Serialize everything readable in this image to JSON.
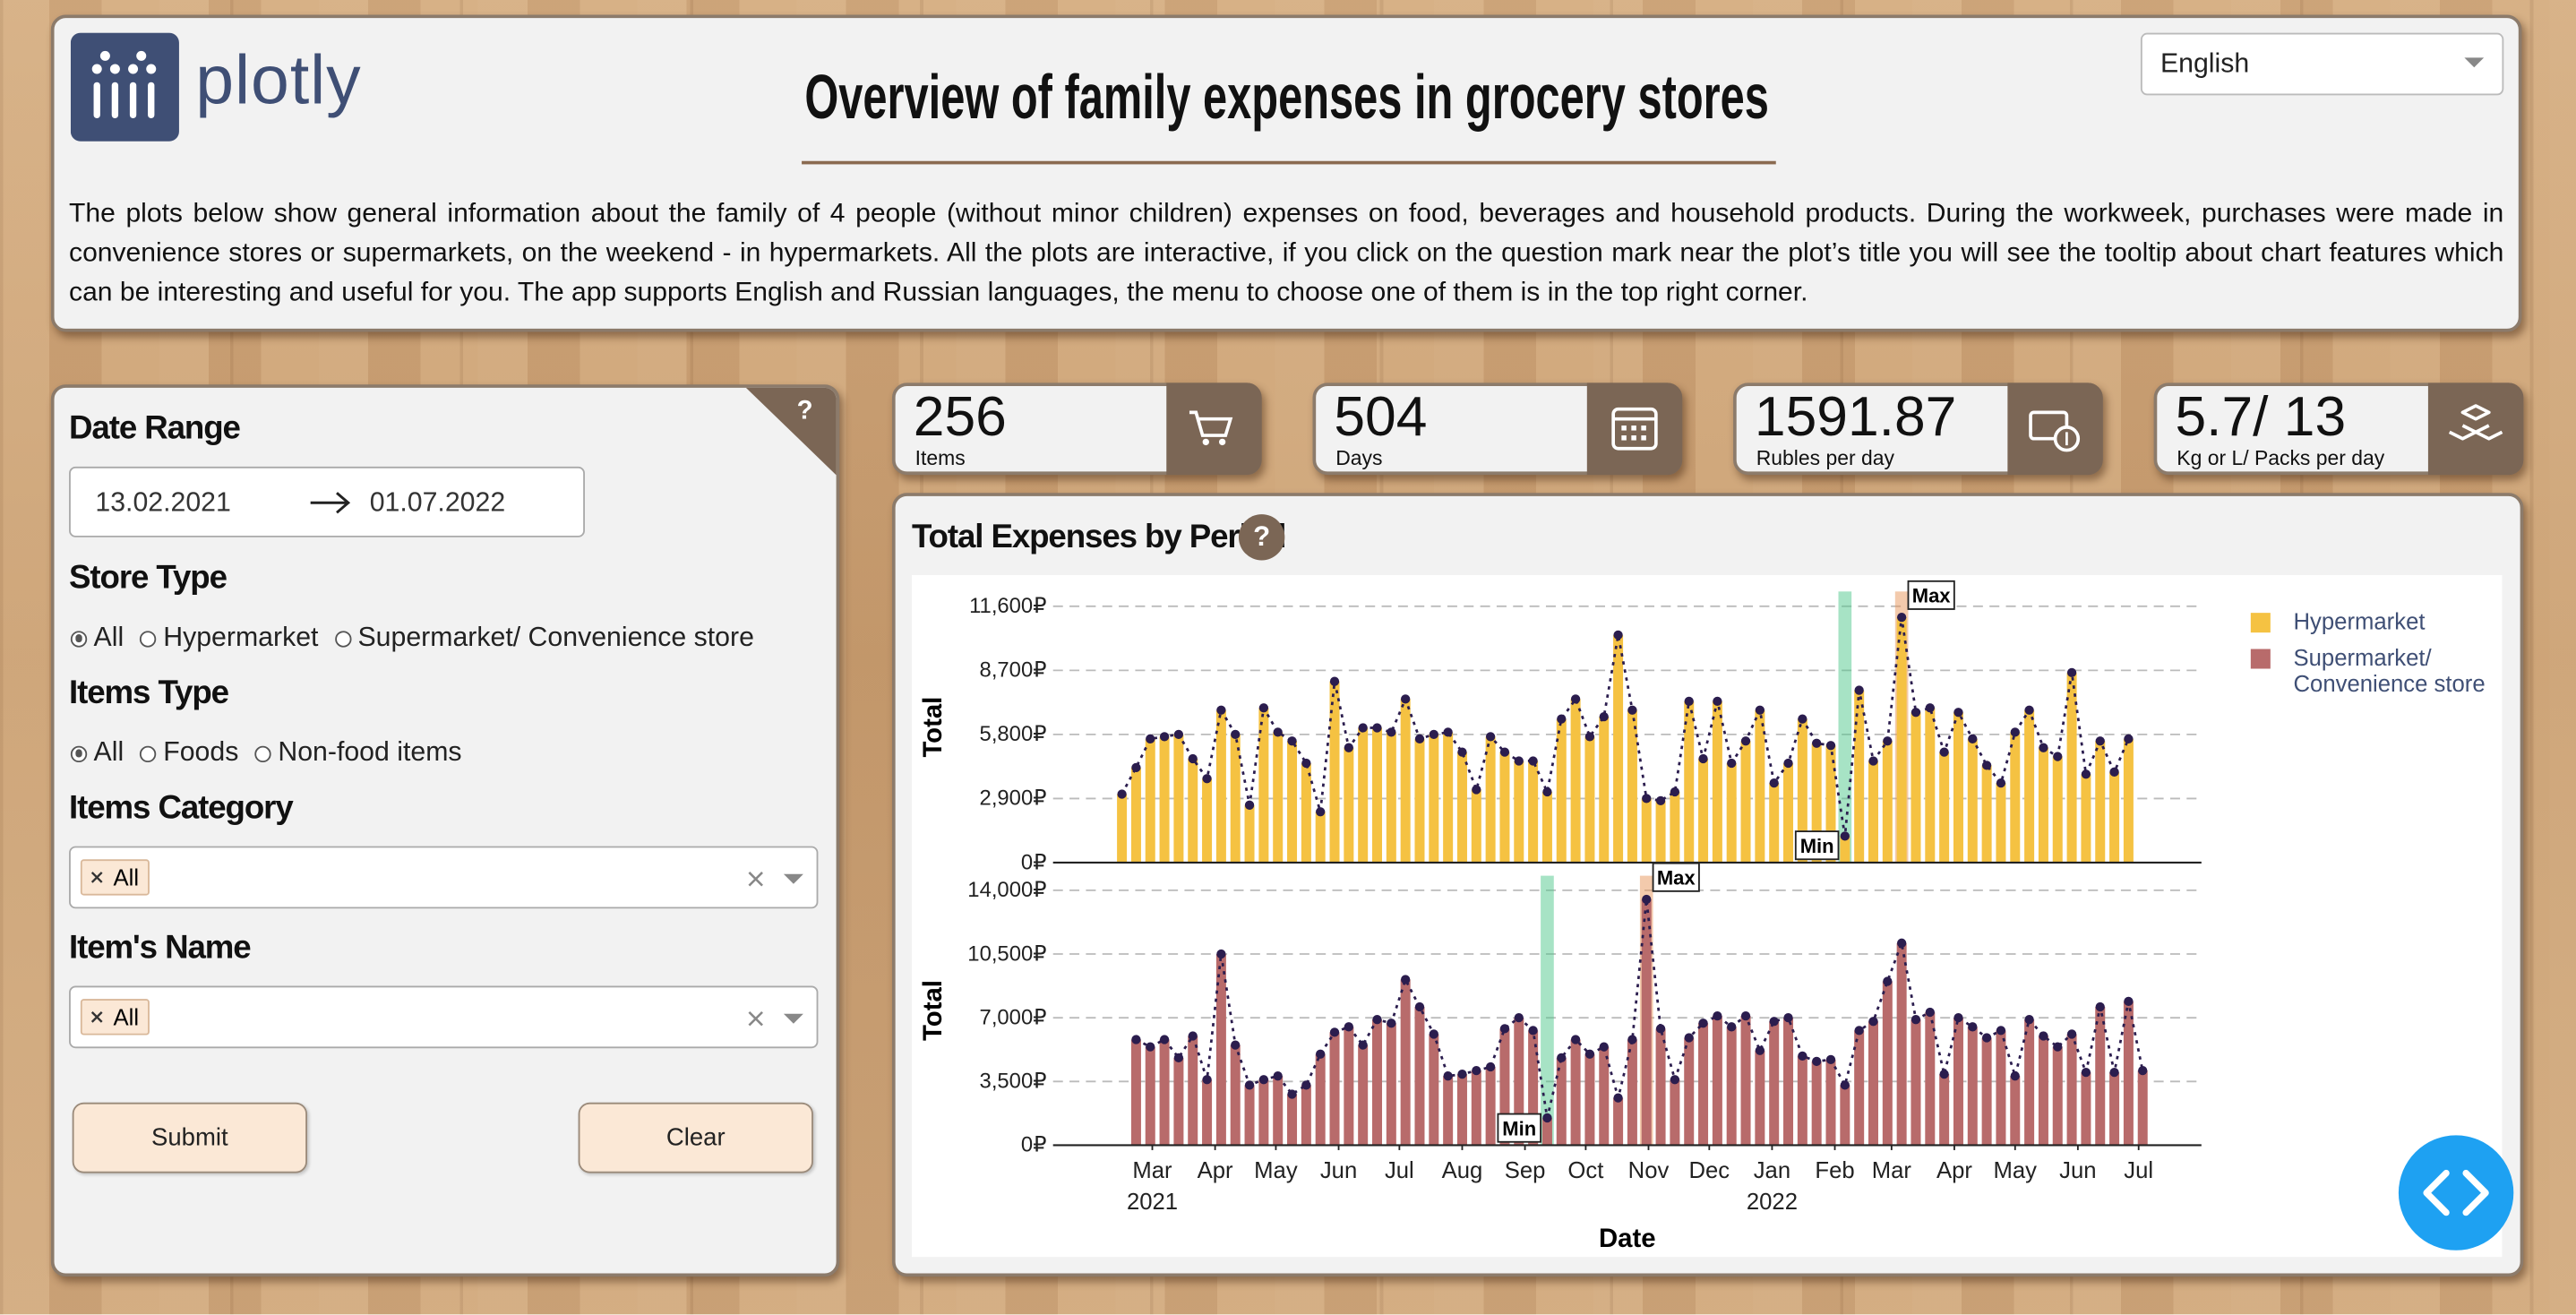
{
  "header": {
    "logo": "plotly",
    "title": "Overview of family expenses in grocery stores",
    "description": "The plots below show general information about the family of 4 people (without minor children) expenses on food, beverages and household products. During the workweek, purchases were made in convenience stores or supermarkets, on the weekend - in hypermarkets. All the plots are interactive, if you click on the question mark near the plot’s title you will see the tooltip about chart features which can be interesting and useful for you. The app supports English and Russian languages, the menu to choose one of them is in the top right corner.",
    "language": "English"
  },
  "filters": {
    "help": "?",
    "date_range": {
      "title": "Date Range",
      "start": "13.02.2021",
      "end": "01.07.2022"
    },
    "store_type": {
      "title": "Store Type",
      "options": [
        "All",
        "Hypermarket",
        "Supermarket/ Convenience store"
      ],
      "selected": 0
    },
    "items_type": {
      "title": "Items Type",
      "options": [
        "All",
        "Foods",
        "Non-food items"
      ],
      "selected": 0
    },
    "items_category": {
      "title": "Items Category",
      "chips": [
        "All"
      ]
    },
    "items_name": {
      "title": "Item's Name",
      "chips": [
        "All"
      ]
    },
    "buttons": [
      "Submit",
      "Clear"
    ]
  },
  "kpis": [
    {
      "value": "256",
      "label": "Items"
    },
    {
      "value": "504",
      "label": "Days"
    },
    {
      "value": "1591.87",
      "label": "Rubles per day"
    },
    {
      "value": "5.7/ 13",
      "label": "Kg or L/ Packs per day"
    }
  ],
  "chart_panel": {
    "title": "Total Expenses by Period",
    "help": "?"
  },
  "chart_data": [
    {
      "type": "bar",
      "y_label": "Total",
      "grid": true,
      "legend": "right",
      "line_color": "#2b1d4e",
      "annotations": {
        "min": "Min",
        "max": "Max"
      },
      "xlim": [
        "2021-01-11",
        "2022-08-01"
      ],
      "ylim": [
        0,
        12270
      ],
      "yticks": [
        {
          "value": 0,
          "label": "0₽"
        },
        {
          "value": 2900,
          "label": "2,900₽"
        },
        {
          "value": 5800,
          "label": "5,800₽"
        },
        {
          "value": 8700,
          "label": "8,700₽"
        },
        {
          "value": 11600,
          "label": "11,600₽"
        }
      ],
      "x": [
        "2021-02-14",
        "2021-02-21",
        "2021-02-28",
        "2021-03-07",
        "2021-03-14",
        "2021-03-21",
        "2021-03-28",
        "2021-04-04",
        "2021-04-11",
        "2021-04-18",
        "2021-04-25",
        "2021-05-02",
        "2021-05-09",
        "2021-05-16",
        "2021-05-23",
        "2021-05-30",
        "2021-06-06",
        "2021-06-13",
        "2021-06-20",
        "2021-06-27",
        "2021-07-04",
        "2021-07-11",
        "2021-07-18",
        "2021-07-25",
        "2021-08-01",
        "2021-08-08",
        "2021-08-15",
        "2021-08-22",
        "2021-08-29",
        "2021-09-05",
        "2021-09-12",
        "2021-09-19",
        "2021-09-26",
        "2021-10-03",
        "2021-10-10",
        "2021-10-17",
        "2021-10-24",
        "2021-10-31",
        "2021-11-07",
        "2021-11-14",
        "2021-11-21",
        "2021-11-28",
        "2021-12-05",
        "2021-12-12",
        "2021-12-19",
        "2021-12-26",
        "2022-01-02",
        "2022-01-09",
        "2022-01-16",
        "2022-01-23",
        "2022-01-30",
        "2022-02-06",
        "2022-02-13",
        "2022-02-20",
        "2022-02-27",
        "2022-03-06",
        "2022-03-13",
        "2022-03-20",
        "2022-03-27",
        "2022-04-03",
        "2022-04-10",
        "2022-04-17",
        "2022-04-24",
        "2022-05-01",
        "2022-05-08",
        "2022-05-15",
        "2022-05-22",
        "2022-05-29",
        "2022-06-05",
        "2022-06-12",
        "2022-06-19",
        "2022-06-26"
      ],
      "series": [
        {
          "name": "Hypermarket",
          "color": "#f5c242",
          "values": [
            3100,
            4300,
            5600,
            5700,
            5800,
            4700,
            3800,
            6900,
            5800,
            2600,
            7000,
            5900,
            5500,
            4500,
            2300,
            8200,
            5200,
            6100,
            6100,
            5900,
            7400,
            5600,
            5800,
            5900,
            5000,
            3300,
            5700,
            5000,
            4600,
            4600,
            3200,
            6500,
            7400,
            5700,
            6600,
            10300,
            6900,
            2900,
            2800,
            3200,
            7300,
            4700,
            7300,
            4500,
            5500,
            6900,
            3600,
            4500,
            6500,
            5400,
            5300,
            1200,
            7800,
            4600,
            5500,
            11100,
            6800,
            7000,
            5000,
            6800,
            5600,
            4400,
            3600,
            5900,
            6900,
            5200,
            4800,
            8600,
            4000,
            5500,
            4100,
            5600
          ]
        }
      ]
    },
    {
      "type": "bar",
      "y_label": "Total",
      "x_label": "Date",
      "grid": true,
      "legend": "right",
      "line_color": "#2b1d4e",
      "annotations": {
        "min": "Min",
        "max": "Max"
      },
      "xlim": [
        "2021-01-11",
        "2022-08-01"
      ],
      "ylim": [
        0,
        14800
      ],
      "yticks": [
        {
          "value": 0,
          "label": "0₽"
        },
        {
          "value": 3500,
          "label": "3,500₽"
        },
        {
          "value": 7000,
          "label": "7,000₽"
        },
        {
          "value": 10500,
          "label": "10,500₽"
        },
        {
          "value": 14000,
          "label": "14,000₽"
        }
      ],
      "xticks": [
        {
          "value": "2021-03-01",
          "label": "Mar"
        },
        {
          "value": "2021-04-01",
          "label": "Apr"
        },
        {
          "value": "2021-05-01",
          "label": "May"
        },
        {
          "value": "2021-06-01",
          "label": "Jun"
        },
        {
          "value": "2021-07-01",
          "label": "Jul"
        },
        {
          "value": "2021-08-01",
          "label": "Aug"
        },
        {
          "value": "2021-09-01",
          "label": "Sep"
        },
        {
          "value": "2021-10-01",
          "label": "Oct"
        },
        {
          "value": "2021-11-01",
          "label": "Nov"
        },
        {
          "value": "2021-12-01",
          "label": "Dec"
        },
        {
          "value": "2022-01-01",
          "label": "Jan"
        },
        {
          "value": "2022-02-01",
          "label": "Feb"
        },
        {
          "value": "2022-03-01",
          "label": "Mar"
        },
        {
          "value": "2022-04-01",
          "label": "Apr"
        },
        {
          "value": "2022-05-01",
          "label": "May"
        },
        {
          "value": "2022-06-01",
          "label": "Jun"
        },
        {
          "value": "2022-07-01",
          "label": "Jul"
        }
      ],
      "xtick_years": [
        {
          "value": "2021-03-01",
          "label": "2021"
        },
        {
          "value": "2022-01-01",
          "label": "2022"
        }
      ],
      "x": [
        "2021-02-21",
        "2021-02-28",
        "2021-03-07",
        "2021-03-14",
        "2021-03-21",
        "2021-03-28",
        "2021-04-04",
        "2021-04-11",
        "2021-04-18",
        "2021-04-25",
        "2021-05-02",
        "2021-05-09",
        "2021-05-16",
        "2021-05-23",
        "2021-05-30",
        "2021-06-06",
        "2021-06-13",
        "2021-06-20",
        "2021-06-27",
        "2021-07-04",
        "2021-07-11",
        "2021-07-18",
        "2021-07-25",
        "2021-08-01",
        "2021-08-08",
        "2021-08-15",
        "2021-08-22",
        "2021-08-29",
        "2021-09-05",
        "2021-09-12",
        "2021-09-19",
        "2021-09-26",
        "2021-10-03",
        "2021-10-10",
        "2021-10-17",
        "2021-10-24",
        "2021-10-31",
        "2021-11-07",
        "2021-11-14",
        "2021-11-21",
        "2021-11-28",
        "2021-12-05",
        "2021-12-12",
        "2021-12-19",
        "2021-12-26",
        "2022-01-02",
        "2022-01-09",
        "2022-01-16",
        "2022-01-23",
        "2022-01-30",
        "2022-02-06",
        "2022-02-13",
        "2022-02-20",
        "2022-02-27",
        "2022-03-06",
        "2022-03-13",
        "2022-03-20",
        "2022-03-27",
        "2022-04-03",
        "2022-04-10",
        "2022-04-17",
        "2022-04-24",
        "2022-05-01",
        "2022-05-08",
        "2022-05-15",
        "2022-05-22",
        "2022-05-29",
        "2022-06-05",
        "2022-06-12",
        "2022-06-19",
        "2022-06-26",
        "2022-07-03"
      ],
      "series": [
        {
          "name": "Supermarket/ Convenience store",
          "color": "#b86b6b",
          "values": [
            5800,
            5400,
            5800,
            4800,
            6000,
            3600,
            10500,
            5500,
            3300,
            3600,
            3800,
            2800,
            3300,
            5000,
            6200,
            6500,
            5500,
            6900,
            6700,
            9100,
            7600,
            6100,
            3800,
            3900,
            4100,
            4300,
            6400,
            7000,
            6300,
            1500,
            4800,
            5800,
            5000,
            5400,
            2600,
            5800,
            13500,
            6400,
            3600,
            5900,
            6700,
            7100,
            6500,
            7100,
            5200,
            6800,
            7000,
            4900,
            4600,
            4700,
            3300,
            6300,
            6800,
            9000,
            11100,
            6900,
            7300,
            3900,
            7000,
            6500,
            5900,
            6300,
            3800,
            6900,
            6000,
            5400,
            6100,
            4000,
            7600,
            4000,
            7900,
            4100
          ]
        }
      ]
    }
  ]
}
